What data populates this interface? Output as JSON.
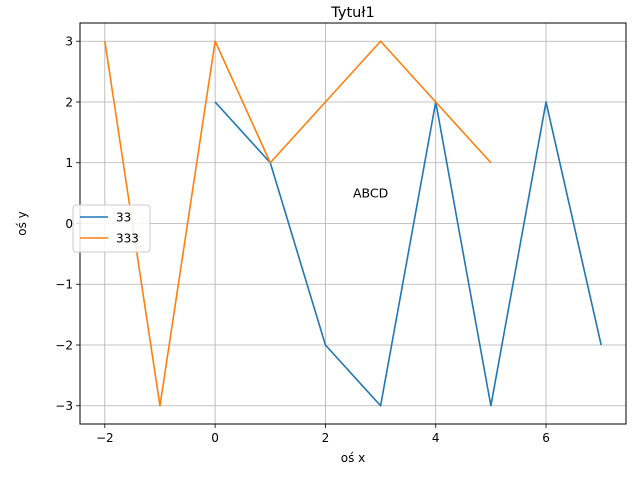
{
  "chart_data": {
    "type": "line",
    "title": "Tytuł1",
    "xlabel": "oś x",
    "ylabel": "oś y",
    "xlim": [
      -2.45,
      7.45
    ],
    "ylim": [
      -3.3,
      3.3
    ],
    "xticks": [
      -2,
      0,
      2,
      4,
      6
    ],
    "xtick_labels": [
      "−2",
      "0",
      "2",
      "4",
      "6"
    ],
    "yticks": [
      -3,
      -2,
      -1,
      0,
      1,
      2,
      3
    ],
    "ytick_labels": [
      "−3",
      "−2",
      "−1",
      "0",
      "1",
      "2",
      "3"
    ],
    "grid": true,
    "legend_position": "center-left",
    "series": [
      {
        "name": "33",
        "color": "#1f77b4",
        "x": [
          0,
          1,
          2,
          3,
          4,
          5,
          6,
          7
        ],
        "y": [
          2,
          1,
          -2,
          -3,
          2,
          -3,
          2,
          -2
        ]
      },
      {
        "name": "333",
        "color": "#ff7f0e",
        "x": [
          -2,
          -1,
          0,
          1,
          2,
          3,
          4,
          5
        ],
        "y": [
          3,
          -3,
          3,
          1,
          2,
          3,
          2,
          1
        ]
      }
    ],
    "annotations": [
      {
        "text": "ABCD",
        "x": 2.5,
        "y": 0.5
      }
    ]
  }
}
